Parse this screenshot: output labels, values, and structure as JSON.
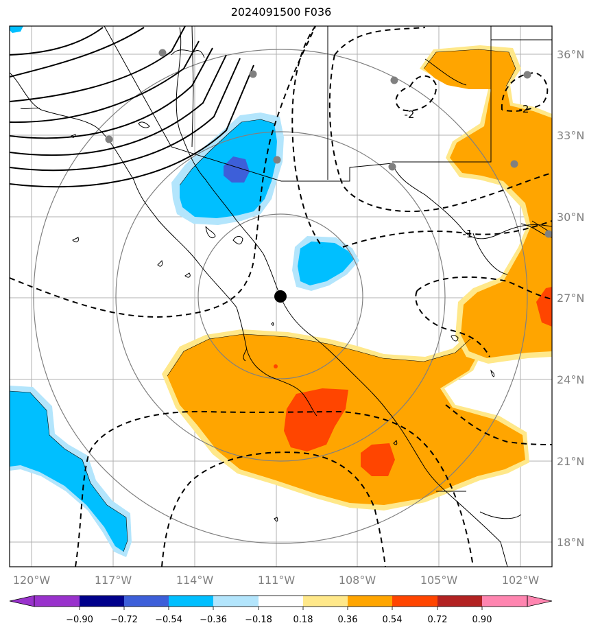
{
  "title": "2024091500 F036",
  "colors": {
    "orange": "#ffa500",
    "red_orange": "#ff4500",
    "light_yellow": "#ffe88a",
    "deep_sky_blue": "#00bfff",
    "light_blue": "#b3e5fc",
    "royal_blue": "#3d5fd9",
    "coast": "#000000",
    "grid": "#b0b0b0",
    "range_ring": "#808080",
    "station": "#808080"
  },
  "latitude_labels": [
    "36°N",
    "33°N",
    "30°N",
    "27°N",
    "24°N",
    "21°N",
    "18°N"
  ],
  "longitude_labels": [
    "120°W",
    "117°W",
    "114°W",
    "111°W",
    "108°W",
    "105°W",
    "102°W"
  ],
  "contour_labels": [
    "-2",
    "-2",
    "-1"
  ],
  "colorbar": {
    "tick_labels": [
      "−0.90",
      "−0.72",
      "−0.54",
      "−0.36",
      "−0.18",
      "0.18",
      "0.36",
      "0.54",
      "0.72",
      "0.90"
    ],
    "colors": [
      "#9932cc",
      "#00008b",
      "#3d5fd9",
      "#00bfff",
      "#b3e5fc",
      "#ffffff",
      "#ffe88a",
      "#ffa500",
      "#ff4500",
      "#b22222",
      "#ff85b0"
    ],
    "extend": "both"
  }
}
